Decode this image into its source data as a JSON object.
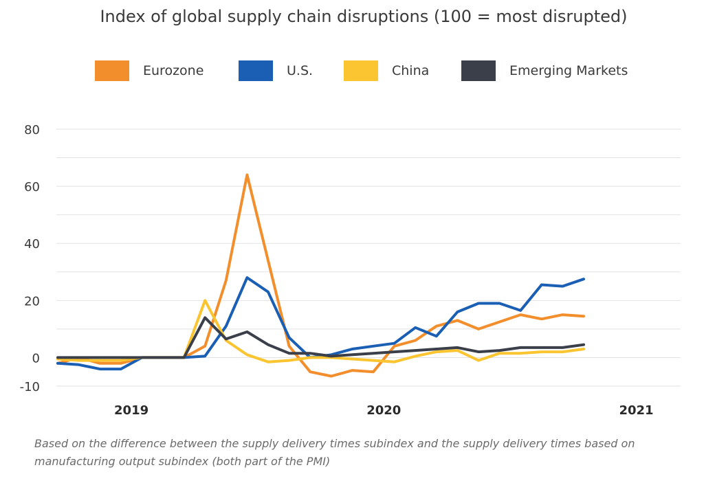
{
  "chart_data": {
    "type": "line",
    "title": "Index of global supply chain disruptions (100 = most disrupted)",
    "note": "Based on the difference between the supply delivery times subindex and the supply delivery times based on manufacturing output subindex (both part of the PMI)",
    "xlabel": "",
    "ylabel": "",
    "ylim": [
      -10,
      80
    ],
    "yticks": [
      80,
      60,
      40,
      20,
      0,
      -10
    ],
    "grid": true,
    "legend_position": "top",
    "year_labels": [
      {
        "label": "2019",
        "month_index": 3.5
      },
      {
        "label": "2020",
        "month_index": 15.5
      },
      {
        "label": "2021",
        "month_index": 27.5
      }
    ],
    "x": [
      0,
      1,
      2,
      3,
      4,
      5,
      6,
      7,
      8,
      9,
      10,
      11,
      12,
      13,
      14,
      15,
      16,
      17,
      18,
      19,
      20,
      21,
      22,
      23,
      24,
      25,
      26,
      27,
      28,
      29,
      30,
      31
    ],
    "series": [
      {
        "name": "Eurozone",
        "color": "#f28e2b",
        "values": [
          -2,
          0,
          -2,
          -2,
          0,
          0,
          0,
          4,
          27,
          64,
          34,
          4,
          -5,
          -6.5,
          -4.5,
          -5,
          4,
          6,
          11,
          13,
          10,
          12.5,
          15,
          13.5,
          15,
          14.5,
          null,
          null,
          null,
          null,
          null,
          null
        ]
      },
      {
        "name": "U.S.",
        "color": "#1a5fb4",
        "values": [
          -2,
          -2.5,
          -4,
          -4,
          0,
          0,
          0,
          0.5,
          11,
          28,
          23,
          7,
          0,
          1,
          3,
          4,
          5,
          10.5,
          7.5,
          16,
          19,
          19,
          16.5,
          25.5,
          25,
          27.5,
          null,
          null,
          null,
          null,
          null,
          null
        ]
      },
      {
        "name": "China",
        "color": "#fbc531",
        "values": [
          -0.5,
          -1,
          -1,
          -1,
          0,
          0,
          0,
          20,
          6,
          1,
          -1.5,
          -1,
          0,
          0,
          -0.5,
          -1,
          -1.5,
          0.5,
          2,
          2.5,
          -1,
          1.5,
          1.5,
          2,
          2,
          3,
          null,
          null,
          null,
          null,
          null,
          null
        ]
      },
      {
        "name": "Emerging Markets",
        "color": "#3a3f4a",
        "values": [
          0,
          0,
          0,
          0,
          0,
          0,
          0,
          14,
          6.5,
          9,
          4.5,
          1.5,
          1.5,
          0.5,
          1,
          1.5,
          2,
          2.5,
          3,
          3.5,
          2,
          2.5,
          3.5,
          3.5,
          3.5,
          4.5,
          null,
          null,
          null,
          null,
          null,
          null
        ]
      }
    ]
  }
}
